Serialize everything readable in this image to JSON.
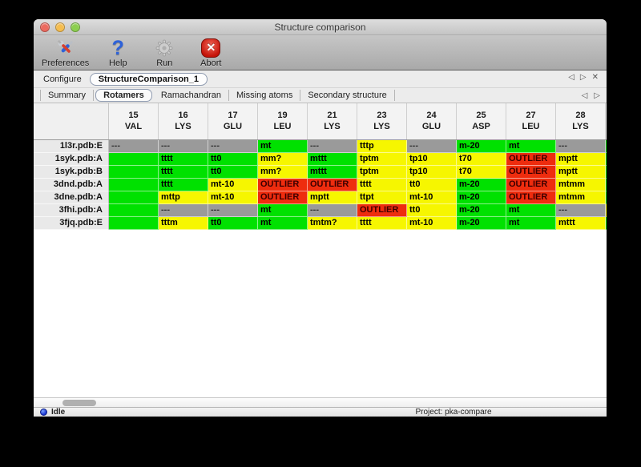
{
  "window": {
    "title": "Structure comparison",
    "traffic_lights": {
      "close": "#ec6a5f",
      "minimize": "#f5bd4f",
      "zoom": "#8ccf4f"
    }
  },
  "toolbar": {
    "items": [
      {
        "label": "Preferences",
        "icon": "tools-icon"
      },
      {
        "label": "Help",
        "icon": "help-icon",
        "glyph": "?"
      },
      {
        "label": "Run",
        "icon": "gear-icon"
      },
      {
        "label": "Abort",
        "icon": "abort-icon",
        "glyph": "✕"
      }
    ]
  },
  "configure": {
    "label": "Configure",
    "value": "StructureComparison_1",
    "nav": {
      "prev": "◁",
      "next": "▷",
      "close": "✕"
    }
  },
  "tabs": {
    "items": [
      "Summary",
      "Rotamers",
      "Ramachandran",
      "Missing atoms",
      "Secondary structure"
    ],
    "selected": "Rotamers",
    "nav": {
      "prev": "◁",
      "next": "▷"
    }
  },
  "colors": {
    "green": "#00e100",
    "yellow": "#f6f600",
    "red": "#ee2c0e",
    "gray": "#9a9a9a"
  },
  "table": {
    "columns": [
      {
        "num": "15",
        "res": "VAL"
      },
      {
        "num": "16",
        "res": "LYS"
      },
      {
        "num": "17",
        "res": "GLU"
      },
      {
        "num": "19",
        "res": "LEU"
      },
      {
        "num": "21",
        "res": "LYS"
      },
      {
        "num": "23",
        "res": "LYS"
      },
      {
        "num": "24",
        "res": "GLU"
      },
      {
        "num": "25",
        "res": "ASP"
      },
      {
        "num": "27",
        "res": "LEU"
      },
      {
        "num": "28",
        "res": "LYS"
      }
    ],
    "rows": [
      {
        "label": "1l3r.pdb:E",
        "clip": "green",
        "cells": [
          {
            "t": "---",
            "c": "gray"
          },
          {
            "t": "---",
            "c": "gray"
          },
          {
            "t": "---",
            "c": "gray"
          },
          {
            "t": "mt",
            "c": "green"
          },
          {
            "t": "---",
            "c": "gray"
          },
          {
            "t": "tttp",
            "c": "yellow"
          },
          {
            "t": "---",
            "c": "gray"
          },
          {
            "t": "m-20",
            "c": "green"
          },
          {
            "t": "mt",
            "c": "green"
          },
          {
            "t": "---",
            "c": "gray"
          }
        ]
      },
      {
        "label": "1syk.pdb:A",
        "clip": "green",
        "cells": [
          {
            "t": "",
            "c": "green"
          },
          {
            "t": "tttt",
            "c": "green"
          },
          {
            "t": "tt0",
            "c": "green"
          },
          {
            "t": "mm?",
            "c": "yellow"
          },
          {
            "t": "mttt",
            "c": "green"
          },
          {
            "t": "tptm",
            "c": "yellow"
          },
          {
            "t": "tp10",
            "c": "yellow"
          },
          {
            "t": "t70",
            "c": "yellow"
          },
          {
            "t": "OUTLIER",
            "c": "red"
          },
          {
            "t": "mptt",
            "c": "yellow"
          }
        ]
      },
      {
        "label": "1syk.pdb:B",
        "clip": "green",
        "cells": [
          {
            "t": "",
            "c": "green"
          },
          {
            "t": "tttt",
            "c": "green"
          },
          {
            "t": "tt0",
            "c": "green"
          },
          {
            "t": "mm?",
            "c": "yellow"
          },
          {
            "t": "mttt",
            "c": "green"
          },
          {
            "t": "tptm",
            "c": "yellow"
          },
          {
            "t": "tp10",
            "c": "yellow"
          },
          {
            "t": "t70",
            "c": "yellow"
          },
          {
            "t": "OUTLIER",
            "c": "red"
          },
          {
            "t": "mptt",
            "c": "yellow"
          }
        ]
      },
      {
        "label": "3dnd.pdb:A",
        "clip": "green",
        "cells": [
          {
            "t": "",
            "c": "green"
          },
          {
            "t": "tttt",
            "c": "green"
          },
          {
            "t": "mt-10",
            "c": "yellow"
          },
          {
            "t": "OUTLIER",
            "c": "red"
          },
          {
            "t": "OUTLIER",
            "c": "red"
          },
          {
            "t": "tttt",
            "c": "yellow"
          },
          {
            "t": "tt0",
            "c": "yellow"
          },
          {
            "t": "m-20",
            "c": "green"
          },
          {
            "t": "OUTLIER",
            "c": "red"
          },
          {
            "t": "mtmm",
            "c": "yellow"
          }
        ]
      },
      {
        "label": "3dne.pdb:A",
        "clip": "green",
        "cells": [
          {
            "t": "",
            "c": "green"
          },
          {
            "t": "mttp",
            "c": "yellow"
          },
          {
            "t": "mt-10",
            "c": "yellow"
          },
          {
            "t": "OUTLIER",
            "c": "red"
          },
          {
            "t": "mptt",
            "c": "yellow"
          },
          {
            "t": "ttpt",
            "c": "yellow"
          },
          {
            "t": "mt-10",
            "c": "yellow"
          },
          {
            "t": "m-20",
            "c": "green"
          },
          {
            "t": "OUTLIER",
            "c": "red"
          },
          {
            "t": "mtmm",
            "c": "yellow"
          }
        ]
      },
      {
        "label": "3fhi.pdb:A",
        "clip": "yellow",
        "cells": [
          {
            "t": "",
            "c": "green"
          },
          {
            "t": "---",
            "c": "gray"
          },
          {
            "t": "---",
            "c": "gray"
          },
          {
            "t": "mt",
            "c": "green"
          },
          {
            "t": "---",
            "c": "gray"
          },
          {
            "t": "OUTLIER",
            "c": "red"
          },
          {
            "t": "tt0",
            "c": "yellow"
          },
          {
            "t": "m-20",
            "c": "green"
          },
          {
            "t": "mt",
            "c": "green"
          },
          {
            "t": "---",
            "c": "gray"
          }
        ]
      },
      {
        "label": "3fjq.pdb:E",
        "clip": "green",
        "cells": [
          {
            "t": "",
            "c": "green"
          },
          {
            "t": "tttm",
            "c": "yellow"
          },
          {
            "t": "tt0",
            "c": "green"
          },
          {
            "t": "mt",
            "c": "green"
          },
          {
            "t": "tmtm?",
            "c": "yellow"
          },
          {
            "t": "tttt",
            "c": "yellow"
          },
          {
            "t": "mt-10",
            "c": "yellow"
          },
          {
            "t": "m-20",
            "c": "green"
          },
          {
            "t": "mt",
            "c": "green"
          },
          {
            "t": "mttt",
            "c": "yellow"
          }
        ]
      }
    ]
  },
  "status": {
    "state": "Idle",
    "project": "Project: pka-compare"
  }
}
